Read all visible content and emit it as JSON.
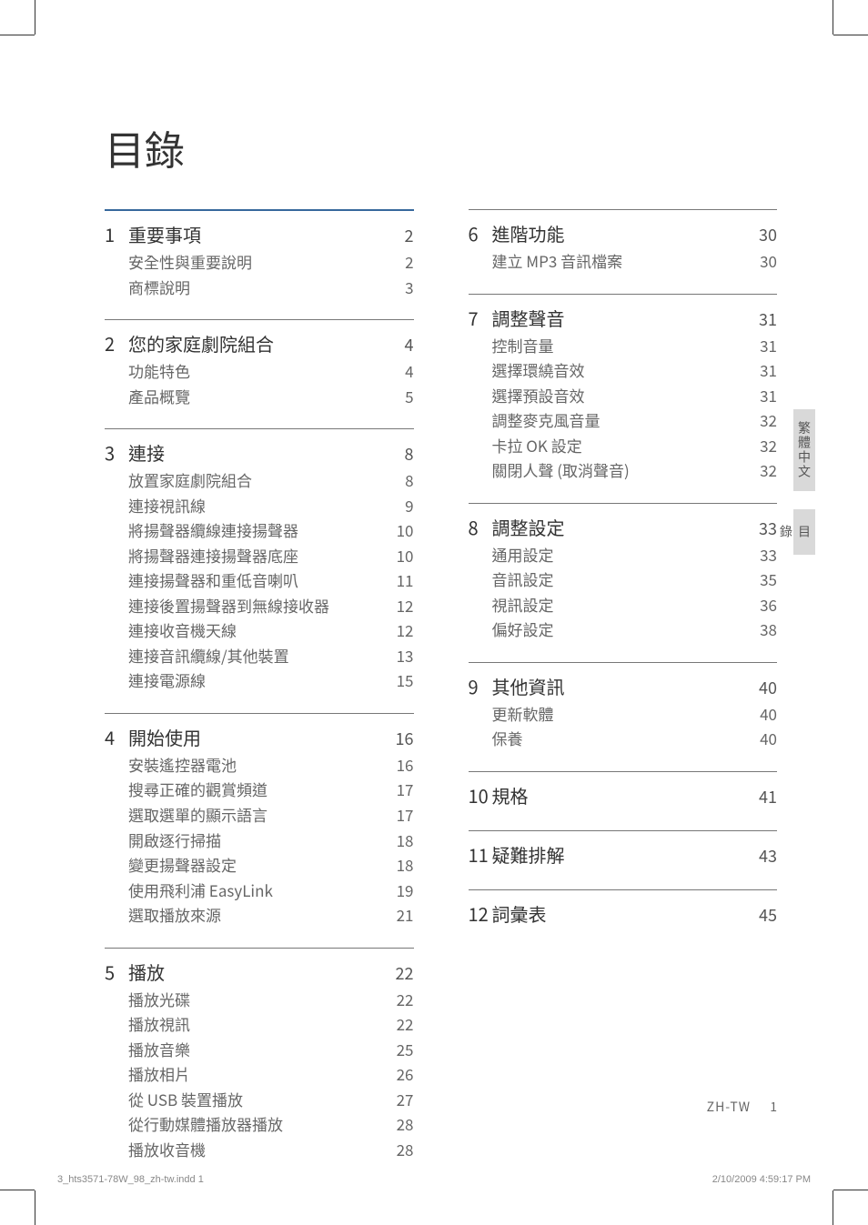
{
  "title": "目錄",
  "colors": {
    "rule_accent": "#37689c",
    "rule": "#777777",
    "heading_text": "#333333",
    "body_text": "#666666",
    "tab_bg": "#d9d9d9",
    "background": "#ffffff"
  },
  "typography": {
    "title_fontsize": 44,
    "heading_fontsize": 20,
    "body_fontsize": 17,
    "footer_fontsize": 11,
    "font_family": "Microsoft JhengHei / PingFang TC / sans-serif"
  },
  "left_sections": [
    {
      "num": "1",
      "title": "重要事項",
      "page": "2",
      "items": [
        {
          "label": "安全性與重要說明",
          "page": "2"
        },
        {
          "label": "商標說明",
          "page": "3"
        }
      ]
    },
    {
      "num": "2",
      "title": "您的家庭劇院組合",
      "page": "4",
      "items": [
        {
          "label": "功能特色",
          "page": "4"
        },
        {
          "label": "產品概覽",
          "page": "5"
        }
      ]
    },
    {
      "num": "3",
      "title": "連接",
      "page": "8",
      "items": [
        {
          "label": "放置家庭劇院組合",
          "page": "8"
        },
        {
          "label": "連接視訊線",
          "page": "9"
        },
        {
          "label": "將揚聲器纜線連接揚聲器",
          "page": "10"
        },
        {
          "label": "將揚聲器連接揚聲器底座",
          "page": "10"
        },
        {
          "label": "連接揚聲器和重低音喇叭",
          "page": "11"
        },
        {
          "label": "連接後置揚聲器到無線接收器",
          "page": "12"
        },
        {
          "label": "連接收音機天線",
          "page": "12"
        },
        {
          "label": "連接音訊纜線/其他裝置",
          "page": "13"
        },
        {
          "label": "連接電源線",
          "page": "15"
        }
      ]
    },
    {
      "num": "4",
      "title": "開始使用",
      "page": "16",
      "items": [
        {
          "label": "安裝遙控器電池",
          "page": "16"
        },
        {
          "label": "搜尋正確的觀賞頻道",
          "page": "17"
        },
        {
          "label": "選取選單的顯示語言",
          "page": "17"
        },
        {
          "label": "開啟逐行掃描",
          "page": "18"
        },
        {
          "label": "變更揚聲器設定",
          "page": "18"
        },
        {
          "label": "使用飛利浦 EasyLink",
          "page": "19"
        },
        {
          "label": "選取播放來源",
          "page": "21"
        }
      ]
    },
    {
      "num": "5",
      "title": "播放",
      "page": "22",
      "items": [
        {
          "label": "播放光碟",
          "page": "22"
        },
        {
          "label": "播放視訊",
          "page": "22"
        },
        {
          "label": "播放音樂",
          "page": "25"
        },
        {
          "label": "播放相片",
          "page": "26"
        },
        {
          "label": "從 USB 裝置播放",
          "page": "27"
        },
        {
          "label": "從行動媒體播放器播放",
          "page": "28"
        },
        {
          "label": "播放收音機",
          "page": "28"
        }
      ]
    }
  ],
  "right_sections": [
    {
      "num": "6",
      "title": "進階功能",
      "page": "30",
      "items": [
        {
          "label": "建立 MP3 音訊檔案",
          "page": "30"
        }
      ]
    },
    {
      "num": "7",
      "title": "調整聲音",
      "page": "31",
      "items": [
        {
          "label": "控制音量",
          "page": "31"
        },
        {
          "label": "選擇環繞音效",
          "page": "31"
        },
        {
          "label": "選擇預設音效",
          "page": "31"
        },
        {
          "label": "調整麥克風音量",
          "page": "32"
        },
        {
          "label": "卡拉 OK 設定",
          "page": "32"
        },
        {
          "label": "關閉人聲 (取消聲音)",
          "page": "32"
        }
      ]
    },
    {
      "num": "8",
      "title": "調整設定",
      "page": "33",
      "items": [
        {
          "label": "通用設定",
          "page": "33"
        },
        {
          "label": "音訊設定",
          "page": "35"
        },
        {
          "label": "視訊設定",
          "page": "36"
        },
        {
          "label": "偏好設定",
          "page": "38"
        }
      ]
    },
    {
      "num": "9",
      "title": "其他資訊",
      "page": "40",
      "items": [
        {
          "label": "更新軟體",
          "page": "40"
        },
        {
          "label": "保養",
          "page": "40"
        }
      ]
    },
    {
      "num": "10",
      "title": "規格",
      "page": "41",
      "items": []
    },
    {
      "num": "11",
      "title": "疑難排解",
      "page": "43",
      "items": []
    },
    {
      "num": "12",
      "title": "詞彙表",
      "page": "45",
      "items": []
    }
  ],
  "side_tabs": [
    {
      "label": "繁體中文"
    },
    {
      "label": "目錄"
    }
  ],
  "page_footer": {
    "lang_code": "ZH-TW",
    "page_number": "1"
  },
  "print_footer": {
    "left": "3_hts3571-78W_98_zh-tw.indd   1",
    "right": "2/10/2009   4:59:17 PM"
  }
}
